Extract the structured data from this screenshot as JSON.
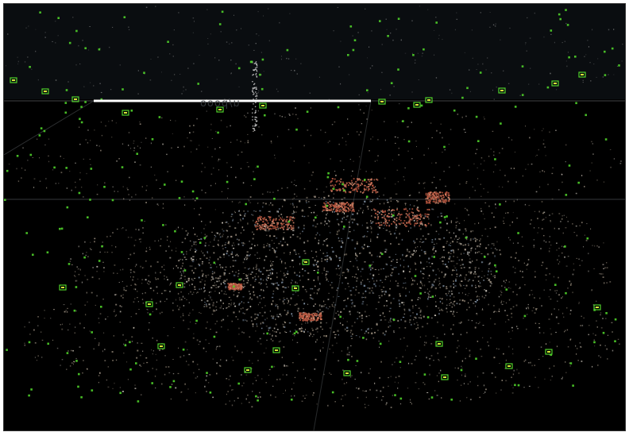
{
  "app": {
    "title": "",
    "viewport": {
      "scale_bar_label": "u/pooo",
      "background": "#000000",
      "colors": {
        "camera_marker": "#4fd02a",
        "grid_line": "#5a5f63",
        "scale_bar": "#ffffff",
        "point_warm": "#c9b8a6",
        "point_roof": "#b6553e",
        "point_cool": "#8fa0b4"
      },
      "icons": [
        "camera-frustum-icon",
        "scale-bar",
        "ground-grid",
        "point-cloud"
      ]
    }
  }
}
